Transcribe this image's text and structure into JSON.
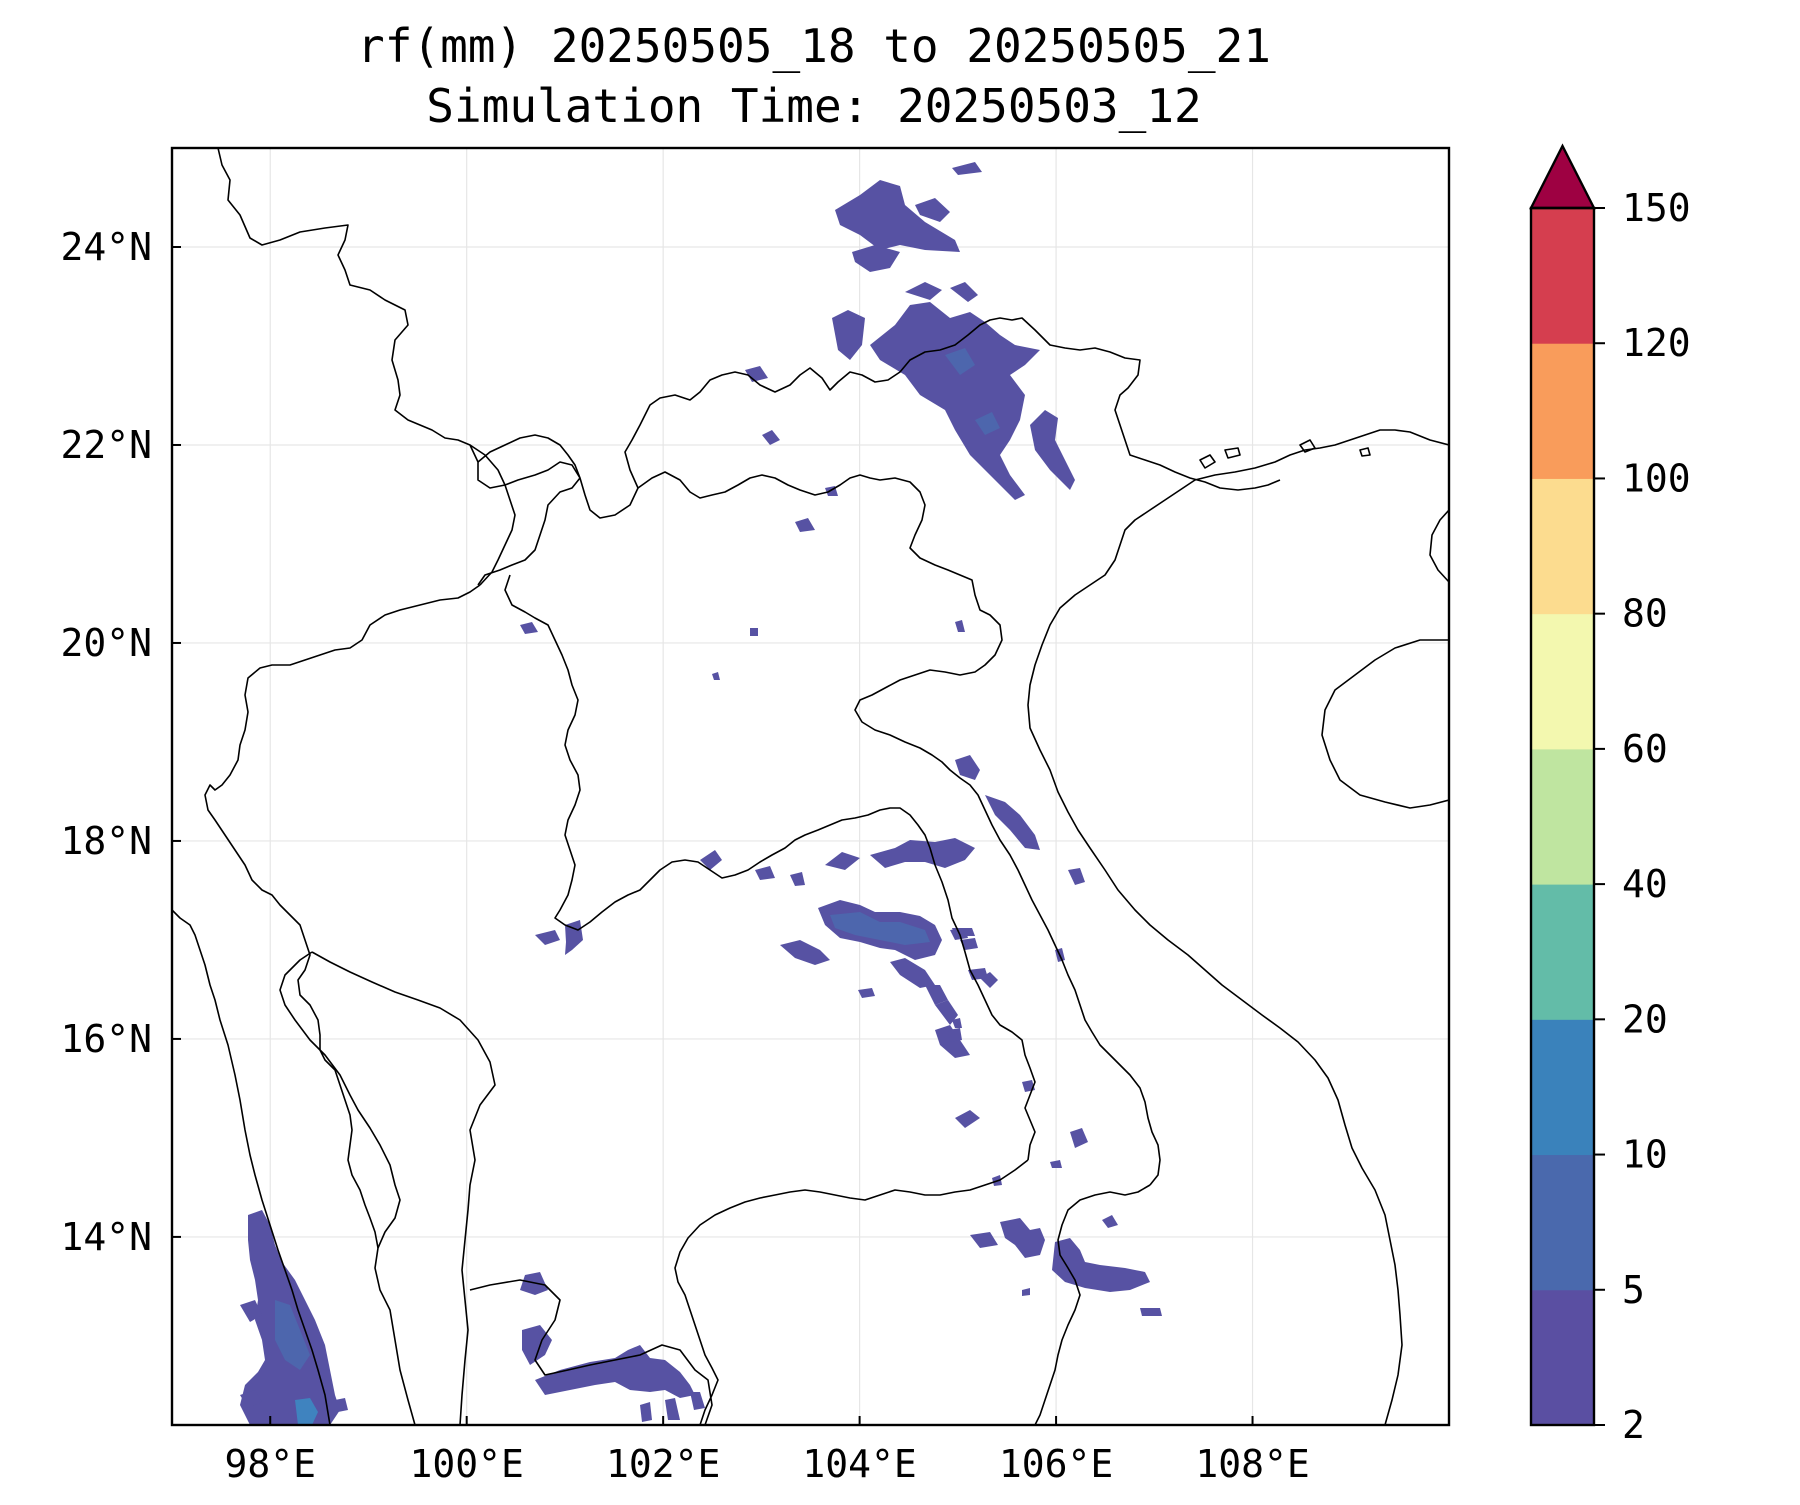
{
  "title": {
    "line1": "rf(mm) 20250505_18 to 20250505_21",
    "line2": "Simulation Time: 20250503_12"
  },
  "map": {
    "lon_range": [
      97,
      110
    ],
    "lat_range": [
      12.1,
      25.0
    ],
    "x_ticks": [
      {
        "value": 98,
        "label": "98°E"
      },
      {
        "value": 100,
        "label": "100°E"
      },
      {
        "value": 102,
        "label": "102°E"
      },
      {
        "value": 104,
        "label": "104°E"
      },
      {
        "value": 106,
        "label": "106°E"
      },
      {
        "value": 108,
        "label": "108°E"
      }
    ],
    "y_ticks": [
      {
        "value": 24,
        "label": "24°N"
      },
      {
        "value": 22,
        "label": "22°N"
      },
      {
        "value": 20,
        "label": "20°N"
      },
      {
        "value": 18,
        "label": "18°N"
      },
      {
        "value": 16,
        "label": "16°N"
      },
      {
        "value": 14,
        "label": "14°N"
      }
    ],
    "grid": true,
    "colors": {
      "rain_light": "#5752a3",
      "rain_mid": "#4d66ad",
      "rain_heavy": "#3f83bf"
    }
  },
  "colorbar": {
    "levels": [
      "2",
      "5",
      "10",
      "20",
      "40",
      "60",
      "80",
      "100",
      "120",
      "150"
    ],
    "colors": [
      "#5a4fa2",
      "#4a69ad",
      "#3a82bb",
      "#63bca8",
      "#bfe5a0",
      "#f3f8af",
      "#fcdc8f",
      "#f99c5b",
      "#d53e4f"
    ],
    "extend_color": "#9e0142",
    "extend": "max"
  }
}
